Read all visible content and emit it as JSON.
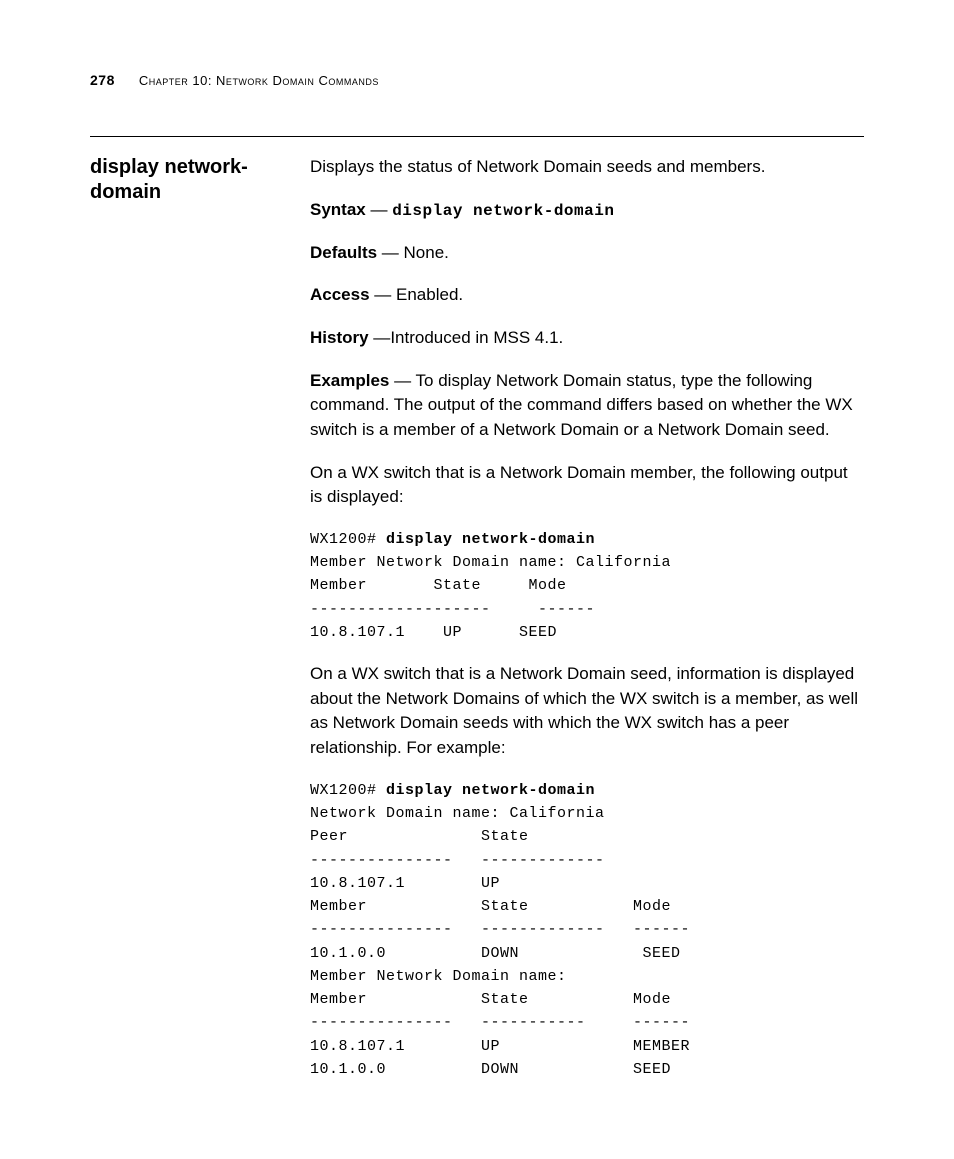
{
  "header": {
    "page_number": "278",
    "chapter_label": "Chapter 10: Network Domain Commands"
  },
  "side_heading": "display network-domain",
  "intro": "Displays the status of Network Domain seeds and members.",
  "syntax": {
    "label": "Syntax",
    "dash": " — ",
    "command": "display network-domain"
  },
  "defaults": {
    "label": "Defaults",
    "dash": " — ",
    "value": "None."
  },
  "access": {
    "label": "Access",
    "dash": " — ",
    "value": "Enabled."
  },
  "history": {
    "label": "History",
    "dash": " —",
    "value": "Introduced in MSS 4.1."
  },
  "examples": {
    "label": "Examples",
    "dash": " — ",
    "text": "To display Network Domain status, type the following command. The output of the command differs based on whether the WX switch is a member of a Network Domain or a Network Domain seed."
  },
  "para_member_intro": "On a WX switch that is a Network Domain member, the following output is displayed:",
  "terminal1": {
    "prompt": "WX1200# ",
    "command": "display network-domain",
    "body": "Member Network Domain name: California\nMember       State     Mode\n-------------------     ------\n10.8.107.1    UP      SEED"
  },
  "para_seed_intro": "On a WX switch that is a Network Domain seed, information is displayed about the Network Domains of which the WX switch is a member, as well as Network Domain seeds with which the WX switch has a peer relationship. For example:",
  "terminal2": {
    "prompt": "WX1200# ",
    "command": "display network-domain",
    "body": "Network Domain name: California\nPeer              State\n---------------   -------------\n10.8.107.1        UP\nMember            State           Mode\n---------------   -------------   ------\n10.1.0.0          DOWN             SEED\nMember Network Domain name:\nMember            State           Mode\n---------------   -----------     ------\n10.8.107.1        UP              MEMBER\n10.1.0.0          DOWN            SEED"
  }
}
